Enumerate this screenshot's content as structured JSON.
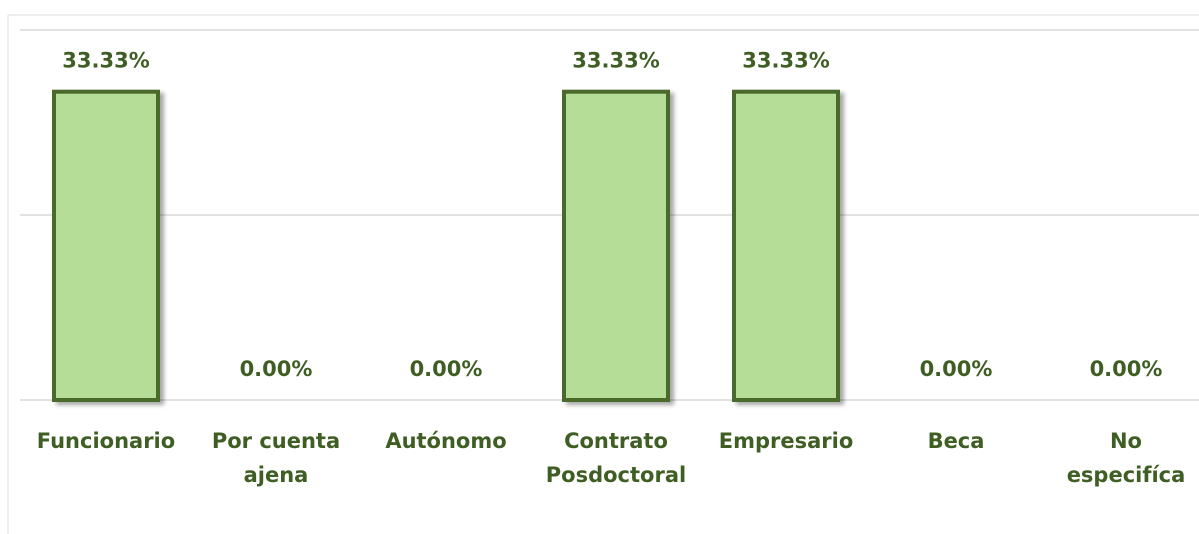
{
  "chart_data": {
    "type": "bar",
    "categories": [
      "Funcionario",
      "Por cuenta\najena",
      "Autónomo",
      "Contrato\nPosdoctoral",
      "Empresario",
      "Beca",
      "No\nespecifíca"
    ],
    "values": [
      33.33,
      0,
      0,
      33.33,
      33.33,
      0,
      0
    ],
    "value_labels": [
      "33.33%",
      "0.00%",
      "0.00%",
      "33.33%",
      "33.33%",
      "0.00%",
      "0.00%"
    ],
    "color": "#b5dd98",
    "edge_color": "#4a6b2a",
    "label_color": "#3e5e23",
    "ylim": [
      0,
      40
    ],
    "yticks": [
      0,
      20,
      40
    ],
    "grid": true
  }
}
